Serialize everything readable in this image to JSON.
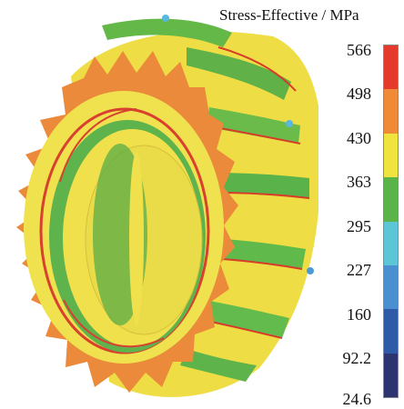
{
  "legend": {
    "title": "Stress-Effective / MPa",
    "ticks": [
      "566",
      "498",
      "430",
      "363",
      "295",
      "227",
      "160",
      "92.2",
      "24.6"
    ],
    "colors": [
      "#e53a2b",
      "#f08a36",
      "#efe33f",
      "#5ab44a",
      "#5cc6d6",
      "#4a8fd0",
      "#2f5aa8",
      "#2d3472"
    ]
  }
}
